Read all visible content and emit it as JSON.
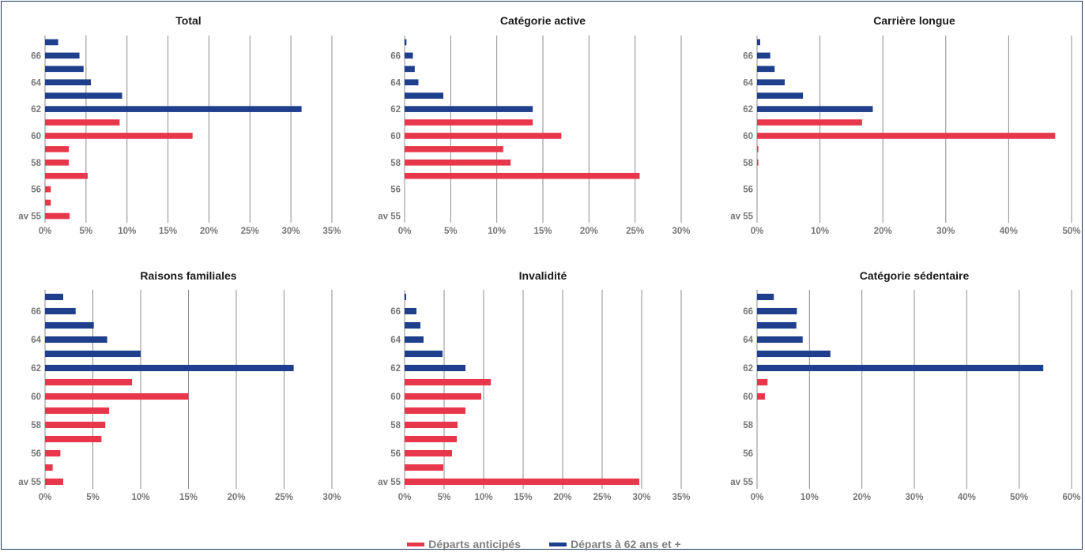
{
  "colors": {
    "anticipated": "#e8374b",
    "at62": "#1f3f8c"
  },
  "legend": {
    "anticipated": "Départs anticipés",
    "at62": "Départs à 62 ans et +"
  },
  "chart_data": [
    {
      "type": "bar",
      "title": "Total",
      "categories": [
        "av 55",
        "55",
        "56",
        "57",
        "58",
        "59",
        "60",
        "61",
        "62",
        "63",
        "64",
        "65",
        "66",
        "67"
      ],
      "y_tick_labels": [
        "av 55",
        "56",
        "58",
        "60",
        "62",
        "64",
        "66"
      ],
      "x_ticks": [
        "0%",
        "5%",
        "10%",
        "15%",
        "20%",
        "25%",
        "30%",
        "35%"
      ],
      "xlim": [
        0,
        35
      ],
      "series": [
        {
          "name": "Départs anticipés",
          "values": [
            3.0,
            0.7,
            0.7,
            5.2,
            2.9,
            2.9,
            18.0,
            9.1,
            0,
            0,
            0,
            0,
            0,
            0
          ]
        },
        {
          "name": "Départs à 62 ans et +",
          "values": [
            0,
            0,
            0,
            0,
            0,
            0,
            0,
            0,
            31.3,
            9.4,
            5.6,
            4.7,
            4.2,
            1.6
          ]
        }
      ]
    },
    {
      "type": "bar",
      "title": "Catégorie active",
      "categories": [
        "av 55",
        "55",
        "56",
        "57",
        "58",
        "59",
        "60",
        "61",
        "62",
        "63",
        "64",
        "65",
        "66",
        "67"
      ],
      "y_tick_labels": [
        "av 55",
        "56",
        "58",
        "60",
        "62",
        "64",
        "66"
      ],
      "x_ticks": [
        "0%",
        "5%",
        "10%",
        "15%",
        "20%",
        "25%",
        "30%"
      ],
      "xlim": [
        0,
        30
      ],
      "series": [
        {
          "name": "Départs anticipés",
          "values": [
            0,
            0,
            0,
            25.5,
            11.5,
            10.7,
            17.0,
            13.9,
            0,
            0,
            0,
            0,
            0,
            0
          ]
        },
        {
          "name": "Départs à 62 ans et +",
          "values": [
            0,
            0,
            0,
            0,
            0,
            0,
            0,
            0,
            13.9,
            4.2,
            1.5,
            1.1,
            0.9,
            0.2
          ]
        }
      ]
    },
    {
      "type": "bar",
      "title": "Carrière longue",
      "categories": [
        "av 55",
        "55",
        "56",
        "57",
        "58",
        "59",
        "60",
        "61",
        "62",
        "63",
        "64",
        "65",
        "66",
        "67"
      ],
      "y_tick_labels": [
        "av 55",
        "56",
        "58",
        "60",
        "62",
        "64",
        "66"
      ],
      "x_ticks": [
        "0%",
        "10%",
        "20%",
        "30%",
        "40%",
        "50%"
      ],
      "xlim": [
        0,
        50
      ],
      "series": [
        {
          "name": "Départs anticipés",
          "values": [
            0,
            0,
            0,
            0,
            0.2,
            0.2,
            47.4,
            16.7,
            0,
            0,
            0,
            0,
            0,
            0
          ]
        },
        {
          "name": "Départs à 62 ans et +",
          "values": [
            0,
            0,
            0,
            0,
            0,
            0,
            0,
            0,
            18.4,
            7.3,
            4.4,
            2.8,
            2.1,
            0.5
          ]
        }
      ]
    },
    {
      "type": "bar",
      "title": "Raisons familiales",
      "categories": [
        "av 55",
        "55",
        "56",
        "57",
        "58",
        "59",
        "60",
        "61",
        "62",
        "63",
        "64",
        "65",
        "66",
        "67"
      ],
      "y_tick_labels": [
        "av 55",
        "56",
        "58",
        "60",
        "62",
        "64",
        "66"
      ],
      "x_ticks": [
        "0%",
        "5%",
        "10%",
        "15%",
        "20%",
        "25%",
        "30%"
      ],
      "xlim": [
        0,
        30
      ],
      "series": [
        {
          "name": "Départs anticipés",
          "values": [
            1.9,
            0.8,
            1.6,
            5.9,
            6.3,
            6.7,
            15.0,
            9.1,
            0,
            0,
            0,
            0,
            0,
            0
          ]
        },
        {
          "name": "Départs à 62 ans et +",
          "values": [
            0,
            0,
            0,
            0,
            0,
            0,
            0,
            0,
            26.0,
            10.0,
            6.5,
            5.1,
            3.2,
            1.9
          ]
        }
      ]
    },
    {
      "type": "bar",
      "title": "Invalidité",
      "categories": [
        "av 55",
        "55",
        "56",
        "57",
        "58",
        "59",
        "60",
        "61",
        "62",
        "63",
        "64",
        "65",
        "66",
        "67"
      ],
      "y_tick_labels": [
        "av 55",
        "56",
        "58",
        "60",
        "62",
        "64",
        "66"
      ],
      "x_ticks": [
        "0%",
        "5%",
        "10%",
        "15%",
        "20%",
        "25%",
        "30%",
        "35%"
      ],
      "xlim": [
        0,
        35
      ],
      "series": [
        {
          "name": "Départs anticipés",
          "values": [
            29.7,
            4.9,
            6.0,
            6.6,
            6.7,
            7.7,
            9.7,
            10.9,
            0,
            0,
            0,
            0,
            0,
            0
          ]
        },
        {
          "name": "Départs à 62 ans et +",
          "values": [
            0,
            0,
            0,
            0,
            0,
            0,
            0,
            0,
            7.7,
            4.8,
            2.4,
            2.0,
            1.5,
            0.2
          ]
        }
      ]
    },
    {
      "type": "bar",
      "title": "Catégorie sédentaire",
      "categories": [
        "av 55",
        "55",
        "56",
        "57",
        "58",
        "59",
        "60",
        "61",
        "62",
        "63",
        "64",
        "65",
        "66",
        "67"
      ],
      "y_tick_labels": [
        "av 55",
        "56",
        "58",
        "60",
        "62",
        "64",
        "66"
      ],
      "x_ticks": [
        "0%",
        "10%",
        "20%",
        "30%",
        "40%",
        "50%",
        "60%"
      ],
      "xlim": [
        0,
        60
      ],
      "series": [
        {
          "name": "Départs anticipés",
          "values": [
            0,
            0,
            0,
            0,
            0,
            0,
            1.5,
            2.0,
            0,
            0,
            0,
            0,
            0,
            0
          ]
        },
        {
          "name": "Départs à 62 ans et +",
          "values": [
            0,
            0,
            0,
            0,
            0,
            0,
            0,
            0,
            54.6,
            14.0,
            8.7,
            7.5,
            7.6,
            3.2
          ]
        }
      ]
    }
  ]
}
